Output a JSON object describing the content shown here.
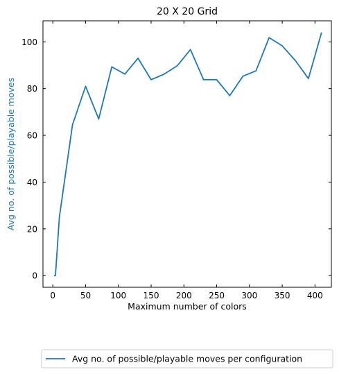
{
  "chart_data": {
    "type": "line",
    "title": "20 X 20 Grid",
    "xlabel": "Maximum number of colors",
    "ylabel": "Avg no. of possible/playable moves",
    "xlim": [
      -15,
      425
    ],
    "ylim": [
      -5,
      109
    ],
    "xticks": [
      0,
      50,
      100,
      150,
      200,
      250,
      300,
      350,
      400
    ],
    "yticks": [
      0,
      20,
      40,
      60,
      80,
      100
    ],
    "grid": false,
    "legend_position": "bottom-center",
    "colors": {
      "line": "#1f77b4",
      "ylabel": "#1f77b4",
      "axis": "#000000"
    },
    "series": [
      {
        "name": "Avg no. of possible/playable moves per configuration",
        "x": [
          2,
          4,
          10,
          30,
          50,
          70,
          90,
          110,
          130,
          150,
          170,
          190,
          210,
          230,
          250,
          270,
          290,
          310,
          330,
          350,
          370,
          390,
          410
        ],
        "y": [
          0,
          0,
          25,
          64.5,
          81,
          67,
          89.3,
          86.2,
          93,
          83.8,
          86.2,
          89.8,
          96.7,
          83.8,
          83.8,
          77,
          85.3,
          87.6,
          101.8,
          98.3,
          92,
          84.3,
          104
        ]
      }
    ]
  }
}
